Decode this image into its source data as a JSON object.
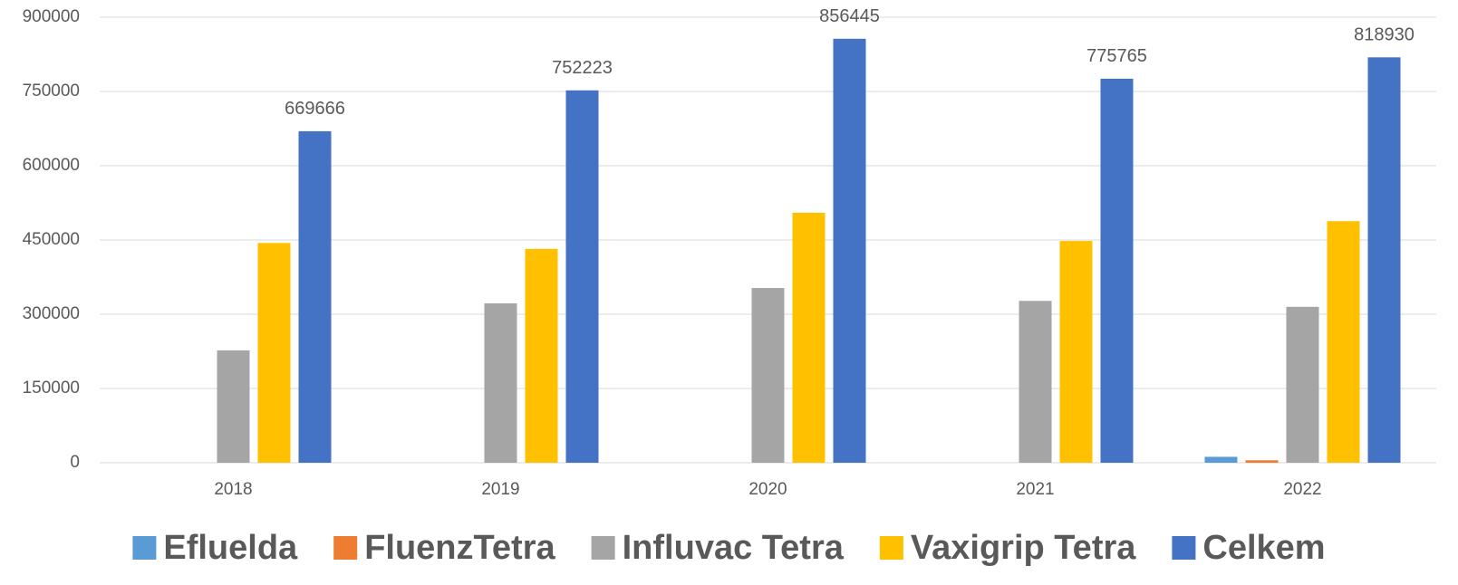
{
  "chart_data": {
    "type": "bar",
    "categories": [
      "2018",
      "2019",
      "2020",
      "2021",
      "2022"
    ],
    "series": [
      {
        "name": "Efluelda",
        "color": "#5b9bd5",
        "values": [
          0,
          0,
          0,
          0,
          12000
        ]
      },
      {
        "name": "FluenzTetra",
        "color": "#ed7d31",
        "values": [
          0,
          0,
          0,
          0,
          5000
        ]
      },
      {
        "name": "Influvac Tetra",
        "color": "#a5a5a5",
        "values": [
          227000,
          322000,
          353000,
          327000,
          315000
        ]
      },
      {
        "name": "Vaxigrip Tetra",
        "color": "#ffc000",
        "values": [
          444000,
          432000,
          505000,
          448000,
          488000
        ]
      },
      {
        "name": "Celkem",
        "color": "#4472c4",
        "values": [
          669666,
          752223,
          856445,
          775765,
          818930
        ],
        "show_values": true
      }
    ],
    "ylim": [
      0,
      900000
    ],
    "yticks": [
      0,
      150000,
      300000,
      450000,
      600000,
      750000,
      900000
    ],
    "grid": true,
    "legend": "bottom"
  }
}
